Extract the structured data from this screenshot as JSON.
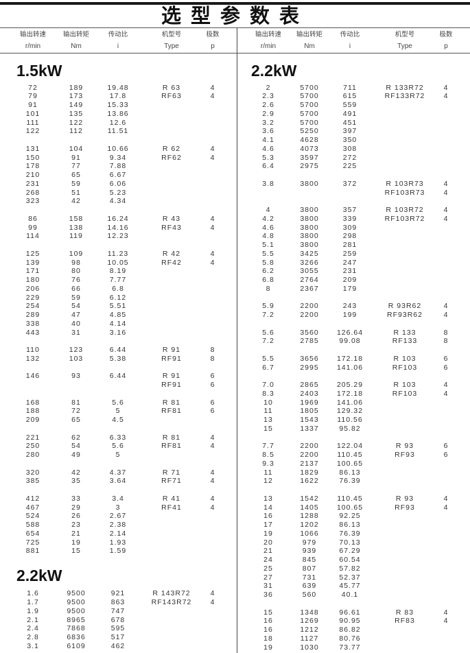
{
  "title": "选型参数表",
  "headers": [
    {
      "cn": "输出转速",
      "unit": "r/min"
    },
    {
      "cn": "输出转矩",
      "unit": "Nm"
    },
    {
      "cn": "传动比",
      "unit": "i"
    },
    {
      "cn": "机型号",
      "unit": "Type"
    },
    {
      "cn": "极数",
      "unit": "p"
    }
  ],
  "columns": [
    {
      "sections": [
        {
          "power": "1.5kW",
          "groups": [
            {
              "rows": [
                [
                  "72",
                  "189",
                  "19.48"
                ],
                [
                  "79",
                  "173",
                  "17.8"
                ],
                [
                  "91",
                  "149",
                  "15.33"
                ],
                [
                  "101",
                  "135",
                  "13.86"
                ],
                [
                  "111",
                  "122",
                  "12.6"
                ],
                [
                  "122",
                  "112",
                  "11.51"
                ]
              ],
              "types": [
                [
                  "R 63",
                  "4"
                ],
                [
                  "RF63",
                  "4"
                ]
              ]
            },
            {
              "rows": [
                [
                  "131",
                  "104",
                  "10.66"
                ],
                [
                  "150",
                  "91",
                  "9.34"
                ],
                [
                  "178",
                  "77",
                  "7.88"
                ],
                [
                  "210",
                  "65",
                  "6.67"
                ],
                [
                  "231",
                  "59",
                  "6.06"
                ],
                [
                  "268",
                  "51",
                  "5.23"
                ],
                [
                  "323",
                  "42",
                  "4.34"
                ]
              ],
              "types": [
                [
                  "R 62",
                  "4"
                ],
                [
                  "RF62",
                  "4"
                ]
              ]
            },
            {
              "rows": [
                [
                  "86",
                  "158",
                  "16.24"
                ],
                [
                  "99",
                  "138",
                  "14.16"
                ],
                [
                  "114",
                  "119",
                  "12.23"
                ]
              ],
              "types": [
                [
                  "R 43",
                  "4"
                ],
                [
                  "RF43",
                  "4"
                ]
              ]
            },
            {
              "rows": [
                [
                  "125",
                  "109",
                  "11.23"
                ],
                [
                  "139",
                  "98",
                  "10.05"
                ],
                [
                  "171",
                  "80",
                  "8.19"
                ],
                [
                  "180",
                  "76",
                  "7.77"
                ],
                [
                  "206",
                  "66",
                  "6.8"
                ],
                [
                  "229",
                  "59",
                  "6.12"
                ],
                [
                  "254",
                  "54",
                  "5.51"
                ],
                [
                  "289",
                  "47",
                  "4.85"
                ],
                [
                  "338",
                  "40",
                  "4.14"
                ],
                [
                  "443",
                  "31",
                  "3.16"
                ]
              ],
              "types": [
                [
                  "R 42",
                  "4"
                ],
                [
                  "RF42",
                  "4"
                ]
              ]
            },
            {
              "rows": [
                [
                  "110",
                  "123",
                  "6.44"
                ],
                [
                  "132",
                  "103",
                  "5.38"
                ]
              ],
              "types": [
                [
                  "R 91",
                  "8"
                ],
                [
                  "RF91",
                  "8"
                ]
              ]
            },
            {
              "rows": [
                [
                  "146",
                  "93",
                  "6.44"
                ]
              ],
              "types": [
                [
                  "R 91",
                  "6"
                ],
                [
                  "RF91",
                  "6"
                ]
              ]
            },
            {
              "rows": [
                [
                  "168",
                  "81",
                  "5.6"
                ],
                [
                  "188",
                  "72",
                  "5"
                ],
                [
                  "209",
                  "65",
                  "4.5"
                ]
              ],
              "types": [
                [
                  "R 81",
                  "6"
                ],
                [
                  "RF81",
                  "6"
                ]
              ]
            },
            {
              "rows": [
                [
                  "221",
                  "62",
                  "6.33"
                ],
                [
                  "250",
                  "54",
                  "5.6"
                ],
                [
                  "280",
                  "49",
                  "5"
                ]
              ],
              "types": [
                [
                  "R 81",
                  "4"
                ],
                [
                  "RF81",
                  "4"
                ]
              ]
            },
            {
              "rows": [
                [
                  "320",
                  "42",
                  "4.37"
                ],
                [
                  "385",
                  "35",
                  "3.64"
                ]
              ],
              "types": [
                [
                  "R 71",
                  "4"
                ],
                [
                  "RF71",
                  "4"
                ]
              ]
            },
            {
              "rows": [
                [
                  "412",
                  "33",
                  "3.4"
                ],
                [
                  "467",
                  "29",
                  "3"
                ],
                [
                  "524",
                  "26",
                  "2.67"
                ],
                [
                  "588",
                  "23",
                  "2.38"
                ],
                [
                  "654",
                  "21",
                  "2.14"
                ],
                [
                  "725",
                  "19",
                  "1.93"
                ],
                [
                  "881",
                  "15",
                  "1.59"
                ]
              ],
              "types": [
                [
                  "R 41",
                  "4"
                ],
                [
                  "RF41",
                  "4"
                ]
              ]
            }
          ]
        },
        {
          "power": "2.2kW",
          "groups": [
            {
              "rows": [
                [
                  "1.6",
                  "9500",
                  "921"
                ],
                [
                  "1.7",
                  "9500",
                  "863"
                ],
                [
                  "1.9",
                  "9500",
                  "747"
                ],
                [
                  "2.1",
                  "8965",
                  "678"
                ],
                [
                  "2.4",
                  "7868",
                  "595"
                ],
                [
                  "2.8",
                  "6836",
                  "517"
                ],
                [
                  "3.1",
                  "6109",
                  "462"
                ]
              ],
              "types": [
                [
                  "R 143R72",
                  "4"
                ],
                [
                  "RF143R72",
                  "4"
                ]
              ]
            }
          ]
        }
      ]
    },
    {
      "sections": [
        {
          "power": "2.2kW",
          "groups": [
            {
              "rows": [
                [
                  "2",
                  "5700",
                  "711"
                ],
                [
                  "2.3",
                  "5700",
                  "615"
                ],
                [
                  "2.6",
                  "5700",
                  "559"
                ],
                [
                  "2.9",
                  "5700",
                  "491"
                ],
                [
                  "3.2",
                  "5700",
                  "451"
                ],
                [
                  "3.6",
                  "5250",
                  "397"
                ],
                [
                  "4.1",
                  "4628",
                  "350"
                ],
                [
                  "4.6",
                  "4073",
                  "308"
                ],
                [
                  "5.3",
                  "3597",
                  "272"
                ],
                [
                  "6.4",
                  "2975",
                  "225"
                ]
              ],
              "types": [
                [
                  "R 133R72",
                  "4"
                ],
                [
                  "RF133R72",
                  "4"
                ]
              ]
            },
            {
              "rows": [
                [
                  "3.8",
                  "3800",
                  "372"
                ]
              ],
              "types": [
                [
                  "R 103R73",
                  "4"
                ],
                [
                  "RF103R73",
                  "4"
                ]
              ]
            },
            {
              "rows": [
                [
                  "4",
                  "3800",
                  "357"
                ],
                [
                  "4.2",
                  "3800",
                  "339"
                ],
                [
                  "4.6",
                  "3800",
                  "309"
                ],
                [
                  "4.8",
                  "3800",
                  "298"
                ],
                [
                  "5.1",
                  "3800",
                  "281"
                ],
                [
                  "5.5",
                  "3425",
                  "259"
                ],
                [
                  "5.8",
                  "3266",
                  "247"
                ],
                [
                  "6.2",
                  "3055",
                  "231"
                ],
                [
                  "6.8",
                  "2764",
                  "209"
                ],
                [
                  "8",
                  "2367",
                  "179"
                ]
              ],
              "types": [
                [
                  "R 103R72",
                  "4"
                ],
                [
                  "RF103R72",
                  "4"
                ]
              ]
            },
            {
              "rows": [
                [
                  "5.9",
                  "2200",
                  "243"
                ],
                [
                  "7.2",
                  "2200",
                  "199"
                ]
              ],
              "types": [
                [
                  "R 93R62",
                  "4"
                ],
                [
                  "RF93R62",
                  "4"
                ]
              ]
            },
            {
              "rows": [
                [
                  "5.6",
                  "3560",
                  "126.64"
                ],
                [
                  "7.2",
                  "2785",
                  "99.08"
                ]
              ],
              "types": [
                [
                  "R 133",
                  "8"
                ],
                [
                  "RF133",
                  "8"
                ]
              ]
            },
            {
              "rows": [
                [
                  "5.5",
                  "3656",
                  "172.18"
                ],
                [
                  "6.7",
                  "2995",
                  "141.06"
                ]
              ],
              "types": [
                [
                  "R 103",
                  "6"
                ],
                [
                  "RF103",
                  "6"
                ]
              ]
            },
            {
              "rows": [
                [
                  "7.0",
                  "2865",
                  "205.29"
                ],
                [
                  "8.3",
                  "2403",
                  "172.18"
                ],
                [
                  "10",
                  "1969",
                  "141.06"
                ],
                [
                  "11",
                  "1805",
                  "129.32"
                ],
                [
                  "13",
                  "1543",
                  "110.56"
                ],
                [
                  "15",
                  "1337",
                  "95.82"
                ]
              ],
              "types": [
                [
                  "R 103",
                  "4"
                ],
                [
                  "RF103",
                  "4"
                ]
              ]
            },
            {
              "rows": [
                [
                  "7.7",
                  "2200",
                  "122.04"
                ],
                [
                  "8.5",
                  "2200",
                  "110.45"
                ],
                [
                  "9.3",
                  "2137",
                  "100.65"
                ],
                [
                  "11",
                  "1829",
                  "86.13"
                ],
                [
                  "12",
                  "1622",
                  "76.39"
                ]
              ],
              "types": [
                [
                  "R 93",
                  "6"
                ],
                [
                  "RF93",
                  "6"
                ]
              ]
            },
            {
              "rows": [
                [
                  "13",
                  "1542",
                  "110.45"
                ],
                [
                  "14",
                  "1405",
                  "100.65"
                ],
                [
                  "16",
                  "1288",
                  "92.25"
                ],
                [
                  "17",
                  "1202",
                  "86.13"
                ],
                [
                  "19",
                  "1066",
                  "76.39"
                ],
                [
                  "20",
                  "979",
                  "70.13"
                ],
                [
                  "21",
                  "939",
                  "67.29"
                ],
                [
                  "24",
                  "845",
                  "60.54"
                ],
                [
                  "25",
                  "807",
                  "57.82"
                ],
                [
                  "27",
                  "731",
                  "52.37"
                ],
                [
                  "31",
                  "639",
                  "45.77"
                ],
                [
                  "36",
                  "560",
                  "40.1"
                ]
              ],
              "types": [
                [
                  "R 93",
                  "4"
                ],
                [
                  "RF93",
                  "4"
                ]
              ]
            },
            {
              "rows": [
                [
                  "15",
                  "1348",
                  "96.61"
                ],
                [
                  "16",
                  "1269",
                  "90.95"
                ],
                [
                  "16",
                  "1212",
                  "86.82"
                ],
                [
                  "18",
                  "1127",
                  "80.76"
                ],
                [
                  "19",
                  "1030",
                  "73.77"
                ]
              ],
              "types": [
                [
                  "R 83",
                  "4"
                ],
                [
                  "RF83",
                  "4"
                ]
              ]
            }
          ]
        }
      ]
    }
  ]
}
